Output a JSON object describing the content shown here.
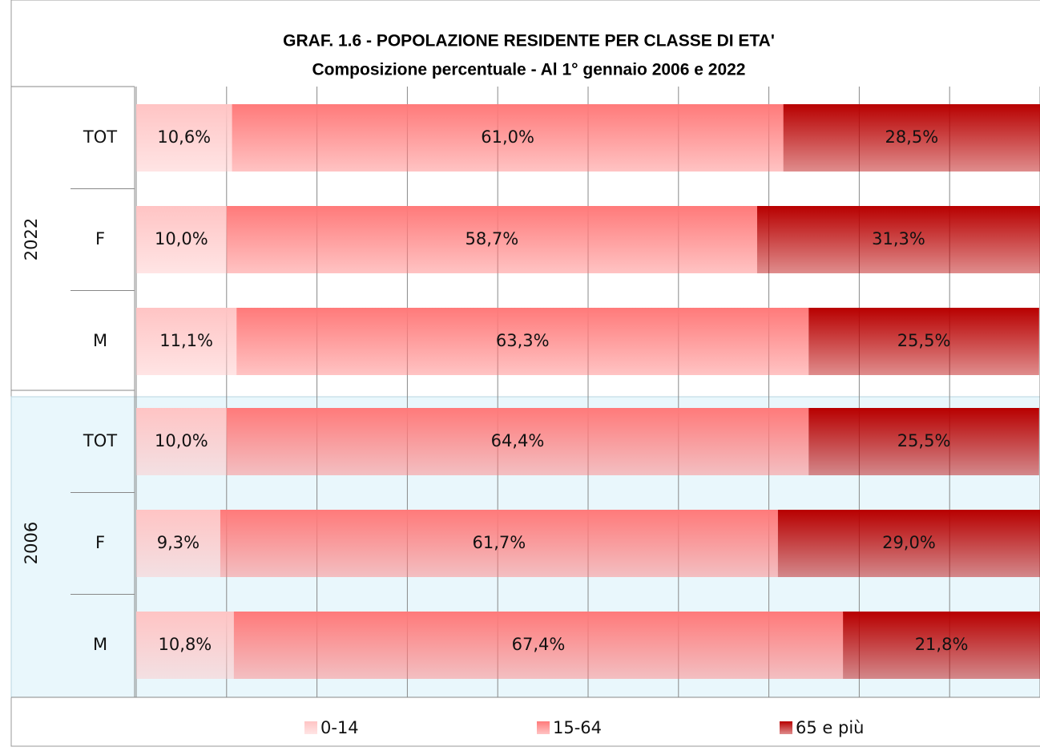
{
  "chart_data": {
    "type": "stacked-bar-horizontal",
    "title": "GRAF. 1.6 - POPOLAZIONE RESIDENTE PER CLASSE DI ETA'",
    "subtitle": "Composizione percentuale - Al 1° gennaio 2006 e 2022",
    "groups": [
      "2022",
      "2006"
    ],
    "categories": [
      "TOT",
      "F",
      "M",
      "TOT",
      "F",
      "M"
    ],
    "series": [
      {
        "name": "0-14",
        "color": "#ffc4c4",
        "values": [
          10.6,
          10.0,
          11.1,
          10.0,
          9.3,
          10.8
        ],
        "value_labels": [
          "10,6%",
          "10,0%",
          "11,1%",
          "10,0%",
          "9,3%",
          "10,8%"
        ]
      },
      {
        "name": "15-64",
        "color": "#ff7a7a",
        "values": [
          61.0,
          58.7,
          63.3,
          64.4,
          61.7,
          67.4
        ],
        "value_labels": [
          "61,0%",
          "58,7%",
          "63,3%",
          "64,4%",
          "61,7%",
          "67,4%"
        ]
      },
      {
        "name": "65 e più",
        "color": "#b80000",
        "values": [
          28.5,
          31.3,
          25.5,
          25.5,
          29.0,
          21.8
        ],
        "value_labels": [
          "28,5%",
          "31,3%",
          "25,5%",
          "25,5%",
          "29,0%",
          "21,8%"
        ]
      }
    ],
    "xlim": [
      0,
      100
    ],
    "xticks": [
      0,
      10,
      20,
      30,
      40,
      50,
      60,
      70,
      80,
      90,
      100
    ],
    "grid": true
  }
}
